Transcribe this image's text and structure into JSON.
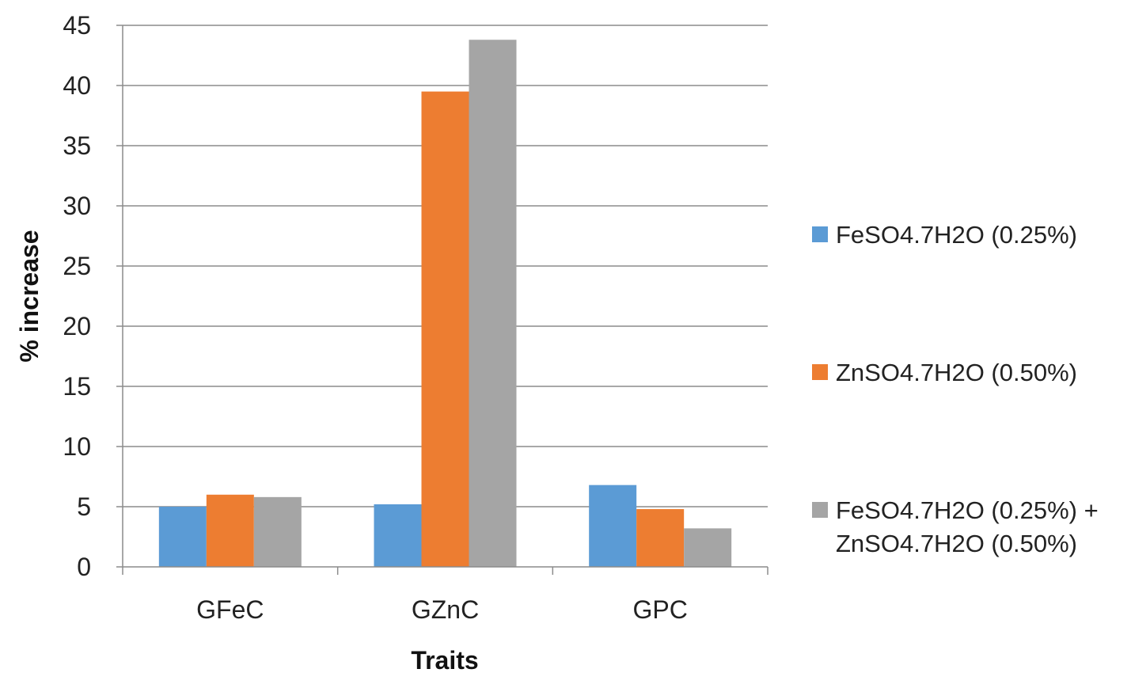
{
  "chart_data": {
    "type": "bar",
    "title": "",
    "xlabel": "Traits",
    "ylabel": "% increase",
    "categories": [
      "GFeC",
      "GZnC",
      "GPC"
    ],
    "ylim": [
      0,
      45
    ],
    "yticks": [
      "0",
      "5",
      "10",
      "15",
      "20",
      "25",
      "30",
      "35",
      "40",
      "45"
    ],
    "grid": true,
    "legend_position": "right",
    "series": [
      {
        "name": "FeSO4.7H2O (0.25%)",
        "color": "#5b9bd5",
        "values": [
          5.0,
          5.2,
          6.8
        ]
      },
      {
        "name": "ZnSO4.7H2O (0.50%)",
        "color": "#ed7d31",
        "values": [
          6.0,
          39.5,
          4.8
        ]
      },
      {
        "name": "FeSO4.7H2O (0.25%) + ZnSO4.7H2O (0.50%)",
        "color": "#a5a5a5",
        "values": [
          5.8,
          43.8,
          3.2
        ]
      }
    ]
  },
  "legend": {
    "items": [
      {
        "line1": "FeSO4.7H2O (0.25%)",
        "line2": ""
      },
      {
        "line1": "ZnSO4.7H2O (0.50%)",
        "line2": ""
      },
      {
        "line1": "FeSO4.7H2O (0.25%) +",
        "line2": "ZnSO4.7H2O (0.50%)"
      }
    ]
  }
}
